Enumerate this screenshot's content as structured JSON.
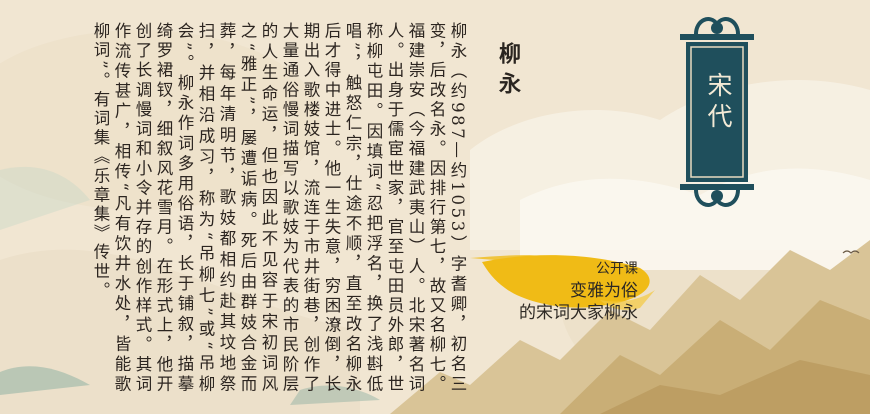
{
  "poet": {
    "name": "柳永",
    "bio": "柳永（约987—约1053）字耆卿，初名三变，后改名永。因排行第七，故又名柳七。福建崇安（今福建武夷山）人。北宋著名词人。出身于儒宦世家，官至屯田员外郎，世称柳屯田。因填词“忍把浮名，换了浅斟低唱”，触怒仁宗，仕途不顺，直至改名柳永后才得中进士。他一生失意，穷困潦倒，长期出入歌楼妓馆，流连于市井街巷，创作了大量通俗慢词描写以歌妓为代表的市民阶层的人生命运，但也因此不见容于宋初词风之“雅正”，屡遭诟病。死后由群妓合金而葬，每年清明节，歌妓都相约赴其坟地祭扫，并相沿成习，称为“吊柳七”或“吊柳会”。柳永作词多用俗语，长于铺叙，描摹绮罗裙钗，细叙风花雪月。在形式上，他开创了长调慢词和小令并存的创作样式。其词作流传甚广，相传“凡有饮井水处，皆能歌柳词”。有词集《乐章集》传世。"
  },
  "dynasty": "宋代",
  "course": {
    "label": "公开课",
    "line1": "变雅为俗",
    "line2": "的宋词大家柳永"
  },
  "colors": {
    "paper": "#f1e6d2",
    "teal": "#1f4f5c",
    "gold": "#f0bb16",
    "text": "#2c2520"
  }
}
